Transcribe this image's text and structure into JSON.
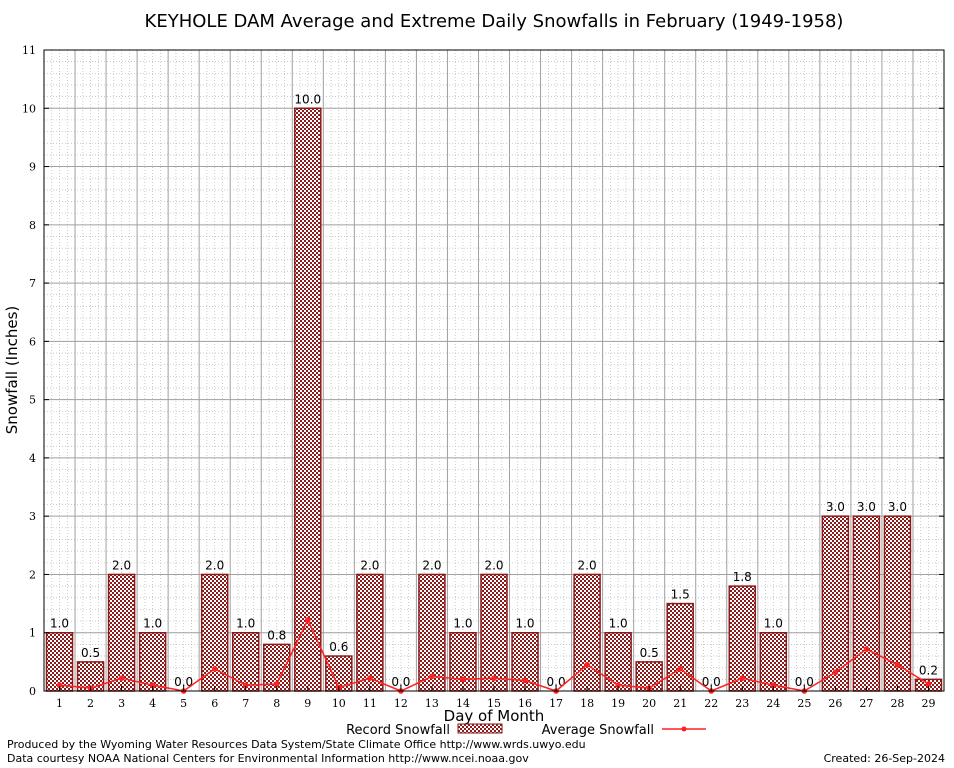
{
  "chart_data": {
    "type": "bar",
    "title": "KEYHOLE DAM Average and Extreme Daily Snowfalls in February (1949-1958)",
    "xlabel": "Day of Month",
    "ylabel": "Snowfall (Inches)",
    "ylim": [
      0,
      11
    ],
    "yticks": [
      0,
      1,
      2,
      3,
      4,
      5,
      6,
      7,
      8,
      9,
      10,
      11
    ],
    "grid": true,
    "legend_position": "bottom",
    "categories": [
      "1",
      "2",
      "3",
      "4",
      "5",
      "6",
      "7",
      "8",
      "9",
      "10",
      "11",
      "12",
      "13",
      "14",
      "15",
      "16",
      "17",
      "18",
      "19",
      "20",
      "21",
      "22",
      "23",
      "24",
      "25",
      "26",
      "27",
      "28",
      "29"
    ],
    "series": [
      {
        "name": "Record Snowfall",
        "kind": "bar",
        "color": "#8b1a1a",
        "values": [
          1.0,
          0.5,
          2.0,
          1.0,
          0.0,
          2.0,
          1.0,
          0.8,
          10.0,
          0.6,
          2.0,
          0.0,
          2.0,
          1.0,
          2.0,
          1.0,
          0.0,
          2.0,
          1.0,
          0.5,
          1.5,
          0.0,
          1.8,
          1.0,
          0.0,
          3.0,
          3.0,
          3.0,
          0.2
        ],
        "labels": [
          "1.0",
          "0.5",
          "2.0",
          "1.0",
          "0.0",
          "2.0",
          "1.0",
          "0.8",
          "10.0",
          "0.6",
          "2.0",
          "0.0",
          "2.0",
          "1.0",
          "2.0",
          "1.0",
          "0.0",
          "2.0",
          "1.0",
          "0.5",
          "1.5",
          "0.0",
          "1.8",
          "1.0",
          "0.0",
          "3.0",
          "3.0",
          "3.0",
          "0.2"
        ]
      },
      {
        "name": "Average Snowfall",
        "kind": "line",
        "color": "#ff2020",
        "values": [
          0.1,
          0.05,
          0.22,
          0.1,
          0.0,
          0.38,
          0.1,
          0.12,
          1.22,
          0.06,
          0.22,
          0.0,
          0.25,
          0.2,
          0.22,
          0.18,
          0.0,
          0.45,
          0.1,
          0.05,
          0.38,
          0.0,
          0.22,
          0.1,
          0.0,
          0.32,
          0.72,
          0.45,
          0.12
        ]
      }
    ]
  },
  "footer": {
    "credit_line1": "Produced by the Wyoming Water Resources Data System/State Climate Office http://www.wrds.uwyo.edu",
    "credit_line2": "Data courtesy NOAA National Centers for Environmental Information http://www.ncei.noaa.gov",
    "created": "Created:  26-Sep-2024"
  }
}
